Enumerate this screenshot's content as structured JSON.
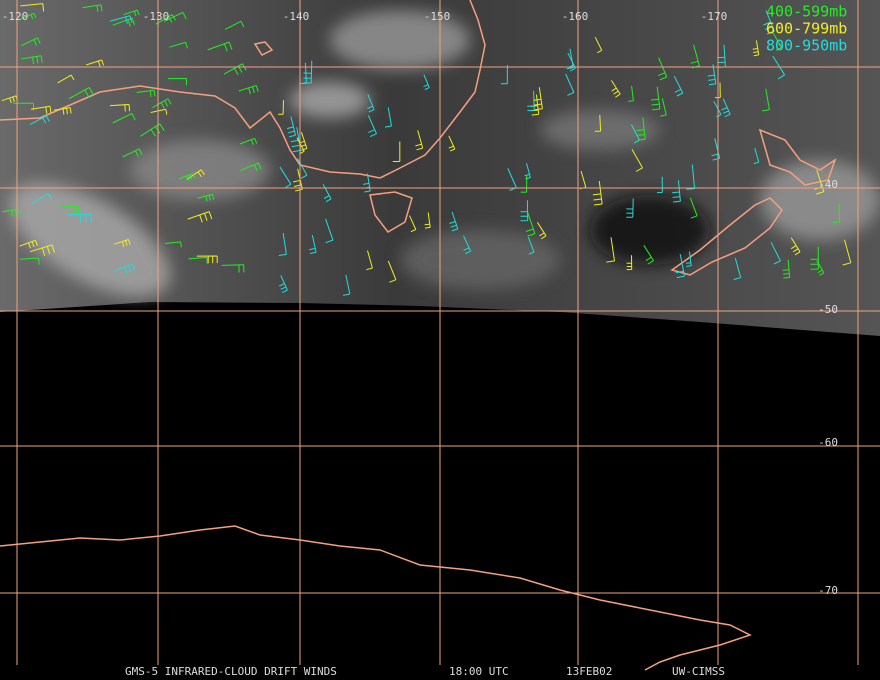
{
  "longitude_labels": [
    "-120",
    "-130",
    "-140",
    "-150",
    "-160",
    "-170"
  ],
  "latitude_labels": [
    "-40",
    "-50",
    "-60",
    "-70"
  ],
  "legend": [
    {
      "label": "400-599mb",
      "color": "#22ee22"
    },
    {
      "label": "600-799mb",
      "color": "#eeee22"
    },
    {
      "label": "800-950mb",
      "color": "#22dddd"
    }
  ],
  "footer": {
    "product": "GMS-5 INFRARED-CLOUD DRIFT WINDS",
    "time": "18:00 UTC",
    "date": "13FEB02",
    "source": "UW-CIMSS"
  }
}
